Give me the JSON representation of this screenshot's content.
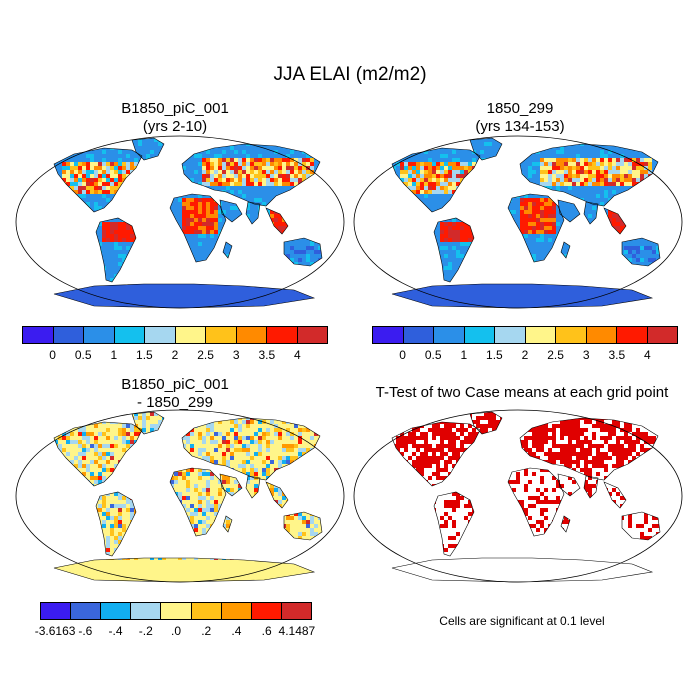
{
  "title": "JJA ELAI (m2/m2)",
  "panels": [
    {
      "title": [
        "B1850_piC_001",
        "(yrs 2-10)"
      ],
      "kind": "field"
    },
    {
      "title": [
        "1850_299",
        "(yrs 134-153)"
      ],
      "kind": "field"
    },
    {
      "title": [
        "B1850_piC_001",
        "- 1850_299"
      ],
      "kind": "diff"
    },
    {
      "title": [
        "T-Test of two Case means at each grid point"
      ],
      "kind": "ttest"
    }
  ],
  "colorbar_field": {
    "colors": [
      "#3b1cf0",
      "#2f5fdc",
      "#2b8fe8",
      "#14c0ee",
      "#a6d7f0",
      "#fff58a",
      "#ffc21a",
      "#ff8a00",
      "#ff1a00",
      "#d22a2a"
    ],
    "labels": [
      "0",
      "0.5",
      "1",
      "1.5",
      "2",
      "2.5",
      "3",
      "3.5",
      "4"
    ]
  },
  "colorbar_diff": {
    "colors": [
      "#3b1cf0",
      "#3a66dc",
      "#12aef0",
      "#a6d7f0",
      "#fff58a",
      "#ffc21a",
      "#ff9a00",
      "#ff1a00",
      "#d22a2a"
    ],
    "labels": [
      "-3.6163",
      "-.6",
      "-.4",
      "-.2",
      ".0",
      ".2",
      ".4",
      ".6",
      "4.1487"
    ]
  },
  "ttest_color": "#e00000",
  "ttest_note": "Cells are significant at 0.1 level"
}
